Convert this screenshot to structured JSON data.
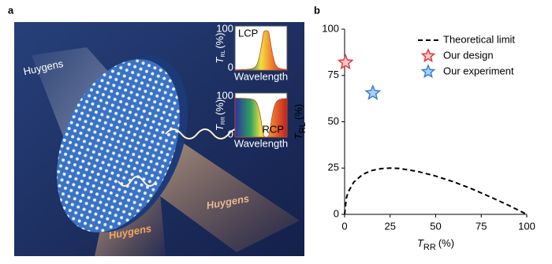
{
  "panel_a": {
    "label": "a",
    "huygens_labels": [
      "Huygens",
      "Huygens",
      "Huygens"
    ],
    "insets": [
      {
        "mode": "LCP",
        "y_symbol": "T",
        "y_subscript": "RL",
        "y_unit": "(%)",
        "ylim": [
          0,
          100
        ],
        "x_label": "Wavelength"
      },
      {
        "mode": "RCP",
        "y_symbol": "T",
        "y_subscript": "RR",
        "y_unit": "(%)",
        "ylim": [
          0,
          100
        ],
        "x_label": "Wavelength"
      }
    ]
  },
  "chart_data": {
    "type": "scatter",
    "panel_label": "b",
    "x_label": {
      "symbol": "T",
      "subscript": "RR",
      "unit": "(%)"
    },
    "y_label": {
      "symbol": "T",
      "subscript": "RL",
      "unit": "(%)"
    },
    "xlim": [
      0,
      100
    ],
    "ylim": [
      0,
      100
    ],
    "xticks": [
      0,
      25,
      50,
      75,
      100
    ],
    "yticks": [
      0,
      25,
      50,
      75,
      100
    ],
    "series": [
      {
        "name": "Theoretical limit",
        "type": "line",
        "color": "#000000",
        "dashed": true,
        "x": [
          0,
          1,
          2,
          5,
          10,
          15,
          20,
          25,
          30,
          40,
          50,
          60,
          70,
          80,
          90,
          100
        ],
        "values": [
          0,
          9,
          12.1,
          17.4,
          21.6,
          23.7,
          24.7,
          25,
          24.8,
          23.2,
          20.7,
          17.5,
          13.7,
          9.4,
          4.9,
          0
        ]
      },
      {
        "name": "Our design",
        "type": "star",
        "color": "#e03a3a",
        "fill": "#f7c9c9",
        "x": [
          0.5
        ],
        "values": [
          82
        ]
      },
      {
        "name": "Our experiment",
        "type": "star",
        "color": "#3a7fd6",
        "fill": "#a9d0f2",
        "x": [
          15.5
        ],
        "values": [
          65.5
        ]
      }
    ],
    "legend": "upper right"
  }
}
